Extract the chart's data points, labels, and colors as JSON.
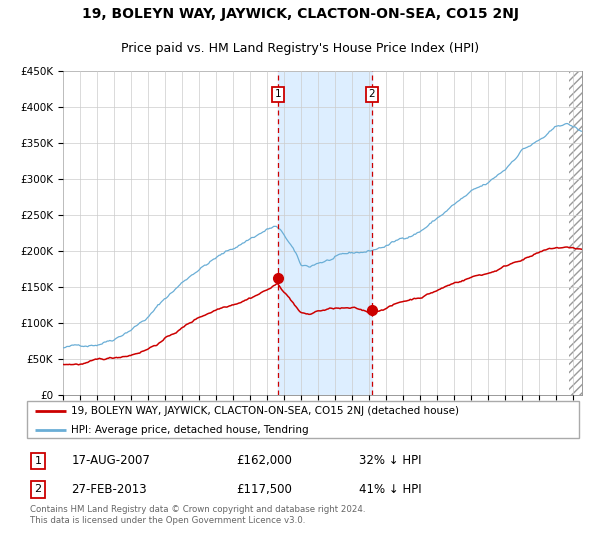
{
  "title": "19, BOLEYN WAY, JAYWICK, CLACTON-ON-SEA, CO15 2NJ",
  "subtitle": "Price paid vs. HM Land Registry's House Price Index (HPI)",
  "legend_line1": "19, BOLEYN WAY, JAYWICK, CLACTON-ON-SEA, CO15 2NJ (detached house)",
  "legend_line2": "HPI: Average price, detached house, Tendring",
  "transaction1_date": "17-AUG-2007",
  "transaction1_price": "£162,000",
  "transaction1_pct": "32% ↓ HPI",
  "transaction2_date": "27-FEB-2013",
  "transaction2_price": "£117,500",
  "transaction2_pct": "41% ↓ HPI",
  "footer": "Contains HM Land Registry data © Crown copyright and database right 2024.\nThis data is licensed under the Open Government Licence v3.0.",
  "hpi_color": "#6aaed6",
  "price_color": "#cc0000",
  "vline_color": "#cc0000",
  "shade_color": "#ddeeff",
  "transaction1_x": 2007.625,
  "transaction2_x": 2013.16,
  "transaction1_y": 162000,
  "transaction2_y": 117500,
  "ylim": [
    0,
    450000
  ],
  "xlim_start": 1995.0,
  "xlim_end": 2025.5,
  "grid_color": "#cccccc",
  "title_fontsize": 10,
  "subtitle_fontsize": 9
}
